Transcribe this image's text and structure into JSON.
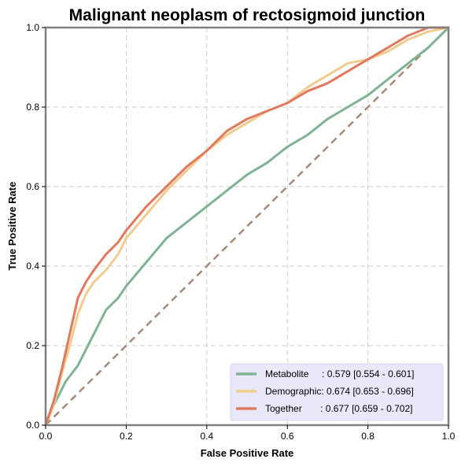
{
  "chart_data": {
    "type": "line",
    "title": "Malignant neoplasm of rectosigmoid junction",
    "xlabel": "False Positive Rate",
    "ylabel": "True Positive Rate",
    "xlim": [
      0,
      1
    ],
    "ylim": [
      0,
      1
    ],
    "xticks": [
      "0.0",
      "0.2",
      "0.4",
      "0.6",
      "0.8",
      "1.0"
    ],
    "yticks": [
      "0.0",
      "0.2",
      "0.4",
      "0.6",
      "0.8",
      "1.0"
    ],
    "grid": true,
    "legend_position": "lower-right",
    "diagonal": {
      "x": [
        0,
        1
      ],
      "y": [
        0,
        1
      ],
      "color": "#a58a7a"
    },
    "series": [
      {
        "name": "Metabolite",
        "legend_label": "Metabolite     : 0.579 [0.554 - 0.601]",
        "color": "#7fb394",
        "x": [
          0,
          0.02,
          0.05,
          0.08,
          0.1,
          0.13,
          0.15,
          0.18,
          0.2,
          0.25,
          0.3,
          0.35,
          0.4,
          0.45,
          0.5,
          0.55,
          0.6,
          0.65,
          0.7,
          0.75,
          0.8,
          0.85,
          0.9,
          0.95,
          1.0
        ],
        "y": [
          0,
          0.05,
          0.11,
          0.15,
          0.19,
          0.25,
          0.29,
          0.32,
          0.35,
          0.41,
          0.47,
          0.51,
          0.55,
          0.59,
          0.63,
          0.66,
          0.7,
          0.73,
          0.77,
          0.8,
          0.83,
          0.87,
          0.91,
          0.95,
          1.0
        ]
      },
      {
        "name": "Demographic",
        "legend_label": "Demographic: 0.674 [0.653 - 0.696]",
        "color": "#f2cc8f",
        "x": [
          0,
          0.02,
          0.04,
          0.06,
          0.08,
          0.1,
          0.12,
          0.15,
          0.18,
          0.2,
          0.25,
          0.3,
          0.35,
          0.4,
          0.45,
          0.5,
          0.55,
          0.6,
          0.65,
          0.7,
          0.75,
          0.8,
          0.85,
          0.9,
          0.95,
          1.0
        ],
        "y": [
          0,
          0.05,
          0.13,
          0.2,
          0.28,
          0.33,
          0.36,
          0.39,
          0.43,
          0.47,
          0.53,
          0.59,
          0.64,
          0.69,
          0.73,
          0.76,
          0.79,
          0.81,
          0.85,
          0.88,
          0.91,
          0.92,
          0.94,
          0.97,
          0.99,
          1.0
        ]
      },
      {
        "name": "Together",
        "legend_label": "Together       : 0.677 [0.659 - 0.702]",
        "color": "#e07a5f",
        "x": [
          0,
          0.02,
          0.04,
          0.06,
          0.08,
          0.1,
          0.12,
          0.15,
          0.18,
          0.2,
          0.25,
          0.3,
          0.35,
          0.4,
          0.45,
          0.5,
          0.55,
          0.6,
          0.65,
          0.7,
          0.75,
          0.8,
          0.85,
          0.9,
          0.95,
          1.0
        ],
        "y": [
          0,
          0.06,
          0.14,
          0.23,
          0.32,
          0.36,
          0.39,
          0.43,
          0.46,
          0.49,
          0.55,
          0.6,
          0.65,
          0.69,
          0.74,
          0.77,
          0.79,
          0.81,
          0.84,
          0.86,
          0.89,
          0.92,
          0.95,
          0.98,
          1.0,
          1.0
        ]
      }
    ]
  }
}
